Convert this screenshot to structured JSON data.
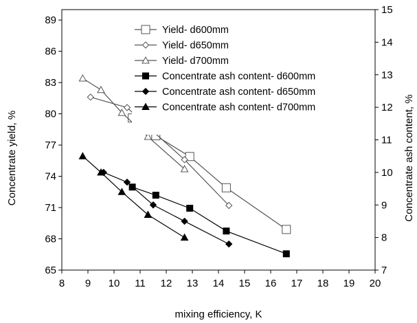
{
  "chart_data": {
    "type": "line",
    "xlabel": "mixing efficiency, K",
    "ylabel_left": "Concentrate yield, %",
    "ylabel_right": "Concentrate ash content, %",
    "xlim": [
      8,
      20
    ],
    "x_ticks": [
      "8",
      "9",
      "10",
      "11",
      "12",
      "13",
      "14",
      "15",
      "16",
      "17",
      "18",
      "19",
      "20"
    ],
    "ylim_left": [
      65,
      90
    ],
    "y_ticks_left": [
      "65",
      "68",
      "71",
      "74",
      "77",
      "80",
      "83",
      "86",
      "89"
    ],
    "ylim_right": [
      7,
      15
    ],
    "y_ticks_right": [
      "7",
      "8",
      "9",
      "10",
      "11",
      "12",
      "13",
      "14",
      "15"
    ],
    "grid": false,
    "legend_position": "top-right",
    "series": [
      {
        "name": "Yield- d600mm",
        "axis": "left",
        "marker": "square-open",
        "x": [
          10.7,
          11.6,
          12.9,
          14.3,
          16.6
        ],
        "y": [
          79.6,
          77.9,
          75.9,
          72.9,
          68.9
        ]
      },
      {
        "name": "Yield- d650mm",
        "axis": "left",
        "marker": "diamond-open",
        "x": [
          9.1,
          10.5,
          11.5,
          12.7,
          14.4
        ],
        "y": [
          81.6,
          80.6,
          78.3,
          75.6,
          71.2
        ]
      },
      {
        "name": "Yield- d700mm",
        "axis": "left",
        "marker": "triangle-open",
        "x": [
          8.8,
          9.5,
          10.3,
          11.3,
          12.7
        ],
        "y": [
          83.4,
          82.3,
          80.1,
          77.8,
          74.7
        ]
      },
      {
        "name": "Concentrate ash content- d600mm",
        "axis": "right",
        "marker": "square-filled",
        "x": [
          10.7,
          11.6,
          12.9,
          14.3,
          16.6
        ],
        "y": [
          9.55,
          9.3,
          8.9,
          8.2,
          7.5
        ]
      },
      {
        "name": "Concentrate ash content- d650mm",
        "axis": "right",
        "marker": "diamond-filled",
        "x": [
          9.6,
          10.5,
          11.5,
          12.7,
          14.4
        ],
        "y": [
          10.0,
          9.7,
          9.0,
          8.5,
          7.8
        ]
      },
      {
        "name": "Concentrate ash content- d700mm",
        "axis": "right",
        "marker": "triangle-filled",
        "x": [
          8.8,
          9.5,
          10.3,
          11.3,
          12.7
        ],
        "y": [
          10.5,
          10.0,
          9.4,
          8.7,
          8.0
        ]
      }
    ]
  }
}
